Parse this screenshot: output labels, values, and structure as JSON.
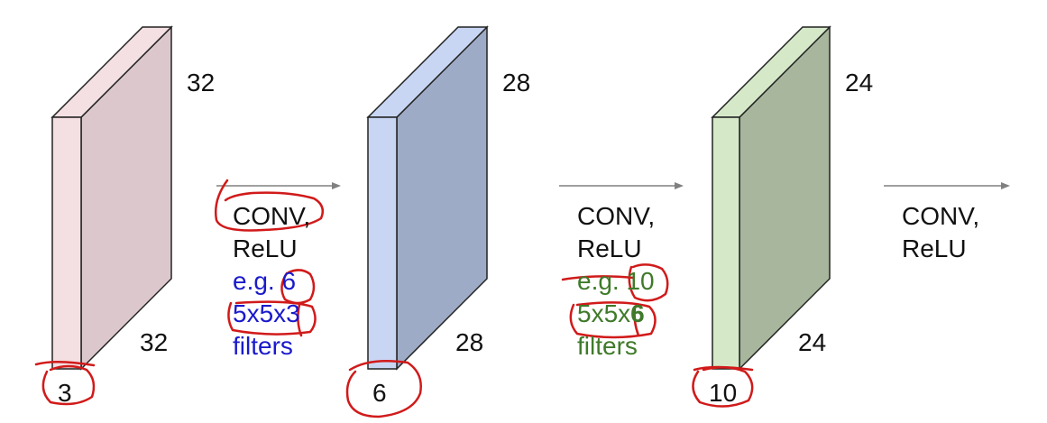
{
  "volumes": [
    {
      "id": "input",
      "height_label": "32",
      "width_label": "32",
      "depth_label": "3",
      "face_color": "#dcc8cc",
      "front_color": "#f4dfe2",
      "top_color": "#f4dfe2"
    },
    {
      "id": "conv1",
      "height_label": "28",
      "width_label": "28",
      "depth_label": "6",
      "face_color": "#9eabc6",
      "front_color": "#c8d6f4",
      "top_color": "#c8d6f4"
    },
    {
      "id": "conv2",
      "height_label": "24",
      "width_label": "24",
      "depth_label": "10",
      "face_color": "#a7b69c",
      "front_color": "#d5e9c9",
      "top_color": "#d5e9c9"
    }
  ],
  "operations": [
    {
      "line1": "CONV,",
      "line2": "ReLU",
      "line3_prefix": "e.g. ",
      "num_filters": "6",
      "line4_prefix": "5x5x",
      "filter_depth": "3",
      "line5": "filters",
      "accent": "#1a1acc"
    },
    {
      "line1": "CONV,",
      "line2": "ReLU",
      "line3_prefix": "e.g. ",
      "num_filters": "10",
      "line4_prefix": "5x5x",
      "filter_depth": "6",
      "line5": "filters",
      "accent": "#3f7a2a"
    },
    {
      "line1": "CONV,",
      "line2": "ReLU"
    }
  ],
  "colors": {
    "arrow": "#808080",
    "annotation": "#d11a1a",
    "edge": "#222222"
  }
}
